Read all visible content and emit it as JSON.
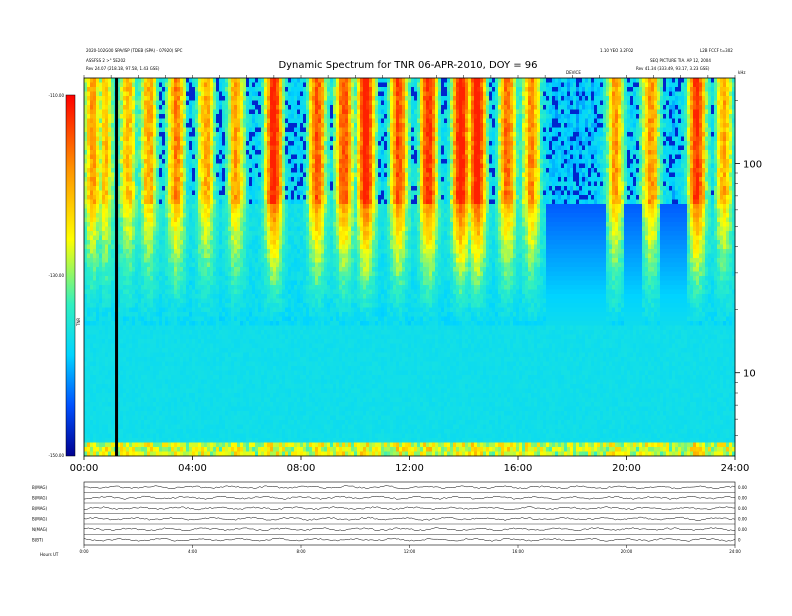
{
  "header": {
    "title": "Dynamic Spectrum for TNR 06-APR-2010, DOY = 96",
    "left_line1": "2020-102G00 SPA/ISP (TDEB (SPA) - 07920) SPC",
    "left_line2": "ASSFSS 2 >° 5E202",
    "left_line3": "Rev   24.07 (218.18, 97.58, 1.43 GSE)",
    "right_line1": "1.10 YEO 3.2F02",
    "right_line2": "SEQ PICTURE TIA. AP 12, 2004",
    "right_line3": "Rev   41.34 (333.49, 93.17, 3.23 GSE)",
    "far_right_line1": "L2B FCCF t=302",
    "marker_label": "DEVICE",
    "ytop_label": "kHz"
  },
  "colorbar": {
    "ticks": [
      "-110.00",
      "-130.00",
      "-150.00"
    ],
    "unit_label": "TNR"
  },
  "chart_data": {
    "type": "heatmap",
    "title": "Dynamic Spectrum for TNR 06-APR-2010, DOY = 96",
    "x_ticks": [
      "00:00",
      "04:00",
      "08:00",
      "12:00",
      "16:00",
      "20:00",
      "24:00"
    ],
    "x_range_hours": [
      0,
      24
    ],
    "y_scale": "log",
    "y_ticks": [
      "100",
      "10"
    ],
    "y_range_khz": [
      4,
      256
    ],
    "color_range": [
      -150,
      -110
    ],
    "colormap": [
      "#0000a0",
      "#0050ff",
      "#00d4ff",
      "#30f0c0",
      "#ffff00",
      "#ff9000",
      "#ff2000"
    ],
    "band_split_khz": 64,
    "dropout_hour": 1.2,
    "activity_bursts": [
      {
        "hour": 0.3,
        "intensity": 0.62
      },
      {
        "hour": 0.8,
        "intensity": 0.55
      },
      {
        "hour": 1.6,
        "intensity": 0.58
      },
      {
        "hour": 2.4,
        "intensity": 0.63
      },
      {
        "hour": 3.4,
        "intensity": 0.7
      },
      {
        "hour": 4.5,
        "intensity": 0.6
      },
      {
        "hour": 5.6,
        "intensity": 0.62
      },
      {
        "hour": 7.0,
        "intensity": 0.92
      },
      {
        "hour": 8.6,
        "intensity": 0.8
      },
      {
        "hour": 9.6,
        "intensity": 0.82
      },
      {
        "hour": 10.4,
        "intensity": 0.95
      },
      {
        "hour": 11.6,
        "intensity": 0.8
      },
      {
        "hour": 12.7,
        "intensity": 0.88
      },
      {
        "hour": 13.9,
        "intensity": 0.97
      },
      {
        "hour": 14.5,
        "intensity": 0.95
      },
      {
        "hour": 15.6,
        "intensity": 0.75
      },
      {
        "hour": 16.5,
        "intensity": 0.68
      },
      {
        "hour": 19.6,
        "intensity": 0.66
      },
      {
        "hour": 20.9,
        "intensity": 0.7
      },
      {
        "hour": 22.6,
        "intensity": 0.9
      },
      {
        "hour": 23.6,
        "intensity": 0.62
      }
    ]
  },
  "magnetometer": {
    "labels": [
      "B(MAG)",
      "B(MAG)",
      "B(MAG)",
      "B(MAG)",
      "N(MAG)",
      "B(BT)"
    ],
    "right_ticks": [
      "0.00",
      "0.00",
      "0.00",
      "0.00",
      "0.00",
      "0"
    ],
    "x_ticks": [
      "0:00",
      "4:00",
      "8:00",
      "12:00",
      "16:00",
      "20:00",
      "24:00"
    ],
    "corner_label": "Hours   UT"
  }
}
